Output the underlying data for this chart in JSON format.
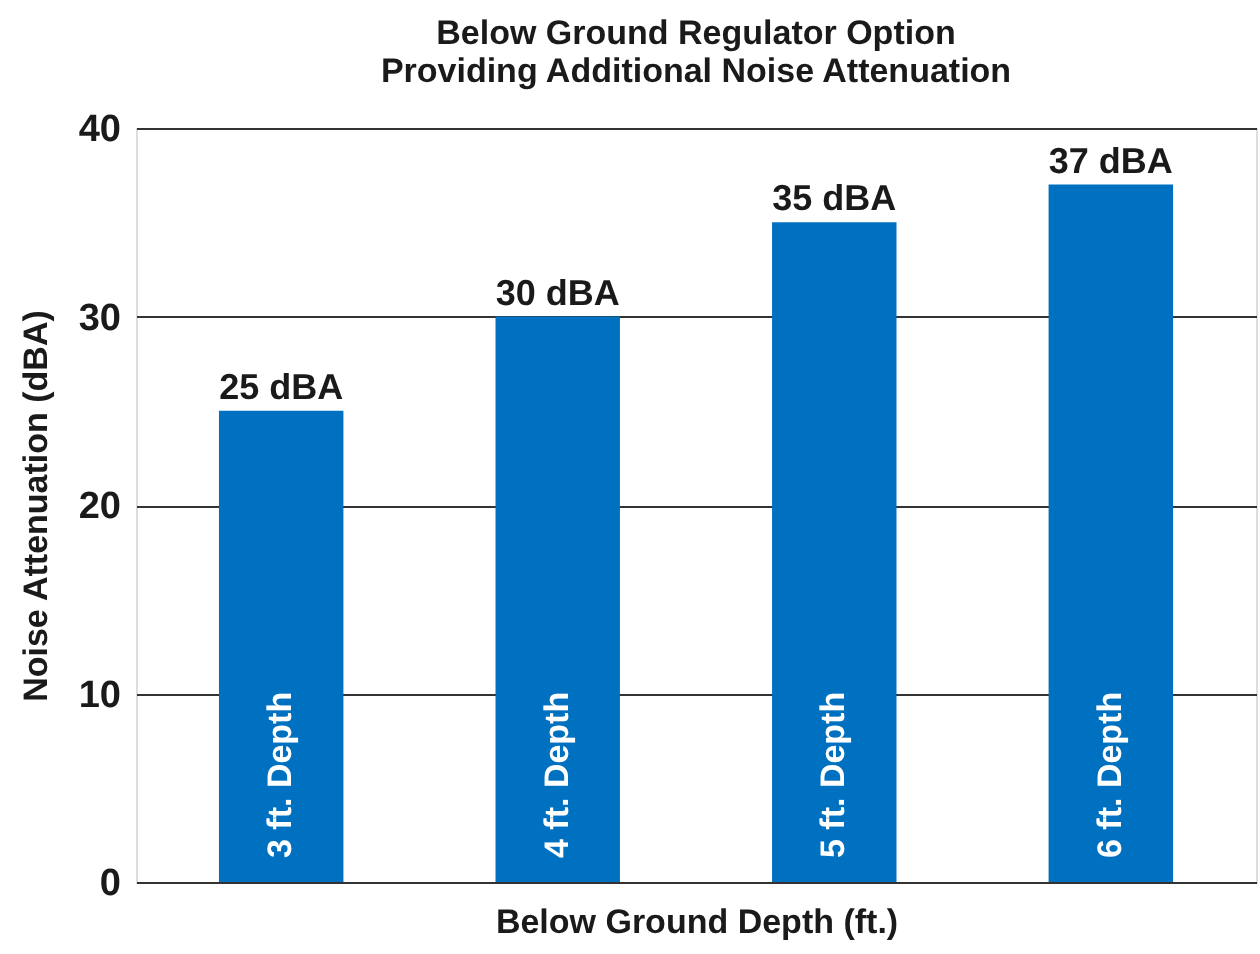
{
  "chart_data": {
    "type": "bar",
    "title": "Below Ground Regulator Option\nProviding Additional Noise Attenuation",
    "xlabel": "Below Ground Depth (ft.)",
    "ylabel": "Noise Attenuation (dBA)",
    "categories": [
      "3 ft. Depth",
      "4 ft. Depth",
      "5 ft. Depth",
      "6 ft. Depth"
    ],
    "values": [
      25,
      30,
      35,
      37
    ],
    "value_labels": [
      "25 dBA",
      "30 dBA",
      "35 dBA",
      "37 dBA"
    ],
    "color": "#0070c0",
    "ylim": [
      0,
      40
    ],
    "yticks": [
      0,
      10,
      20,
      30,
      40
    ],
    "grid": "y",
    "tick_labels": "y"
  }
}
